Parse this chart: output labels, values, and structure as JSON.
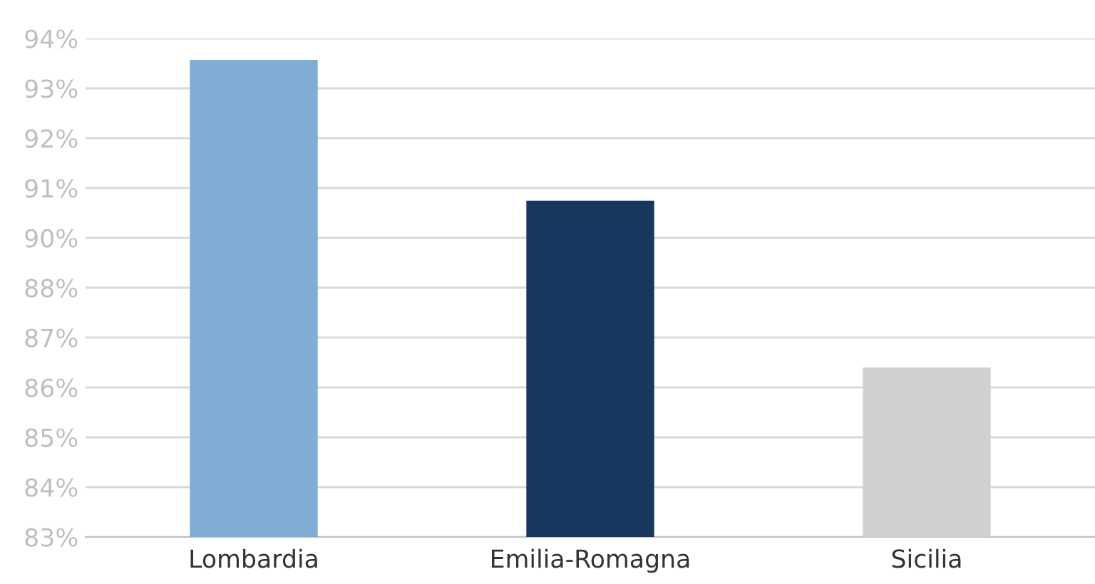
{
  "chart_data": {
    "type": "bar",
    "categories": [
      "Lombardia",
      "Emilia-Romagna",
      "Sicilia"
    ],
    "values": [
      93.53,
      90.42,
      86.74
    ],
    "colors": [
      "#7fadd6",
      "#17375e",
      "#d0d0d0"
    ],
    "ylim": [
      83,
      94
    ],
    "yticks": [
      {
        "value": 83,
        "label": "83%"
      },
      {
        "value": 84.1,
        "label": "84%"
      },
      {
        "value": 85.2,
        "label": "85%"
      },
      {
        "value": 86.3,
        "label": "86%"
      },
      {
        "value": 87.4,
        "label": "87%"
      },
      {
        "value": 88.5,
        "label": "88%"
      },
      {
        "value": 89.6,
        "label": "90%"
      },
      {
        "value": 90.7,
        "label": "91%"
      },
      {
        "value": 91.8,
        "label": "92%"
      },
      {
        "value": 92.9,
        "label": "93%"
      },
      {
        "value": 94,
        "label": "94%"
      }
    ],
    "grid": "y"
  }
}
